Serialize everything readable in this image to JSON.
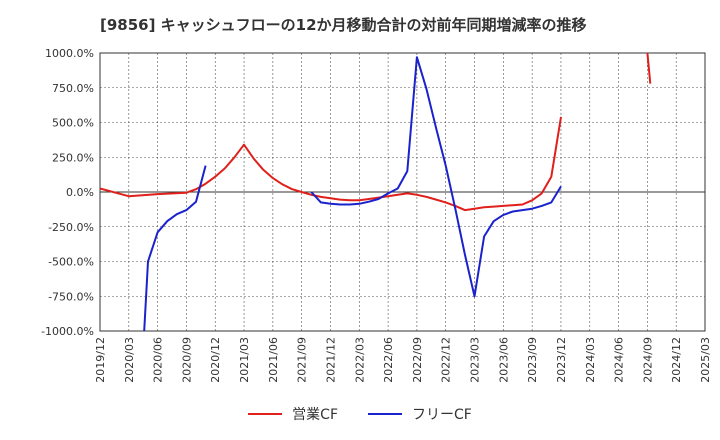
{
  "chart_data": {
    "type": "line",
    "title": "[9856]  キャッシュフローの12か月移動合計の対前年同期増減率の推移",
    "ylim": [
      -1000,
      1000
    ],
    "yticks": [
      1000,
      750,
      500,
      250,
      0,
      -250,
      -500,
      -750,
      -1000
    ],
    "ytick_labels": [
      "1000.0%",
      "750.0%",
      "500.0%",
      "250.0%",
      "0.0%",
      "-250.0%",
      "-500.0%",
      "-750.0%",
      "-1000.0%"
    ],
    "xticks": [
      "2019/12",
      "2020/03",
      "2020/06",
      "2020/09",
      "2020/12",
      "2021/03",
      "2021/06",
      "2021/09",
      "2021/12",
      "2022/03",
      "2022/06",
      "2022/09",
      "2022/12",
      "2023/03",
      "2023/06",
      "2023/09",
      "2023/12",
      "2024/03",
      "2024/06",
      "2024/09",
      "2024/12",
      "2025/03"
    ],
    "grid": true,
    "legend_position": "bottom-center",
    "series": [
      {
        "name": "営業CF",
        "color": "#e0201b",
        "segments": [
          [
            [
              0,
              25
            ],
            [
              3,
              -30
            ],
            [
              6,
              -15
            ],
            [
              9,
              -5
            ],
            [
              10,
              20
            ],
            [
              11,
              60
            ],
            [
              12,
              110
            ],
            [
              13,
              170
            ],
            [
              14,
              250
            ],
            [
              15,
              340
            ],
            [
              16,
              240
            ],
            [
              17,
              160
            ],
            [
              18,
              100
            ],
            [
              19,
              55
            ],
            [
              20,
              20
            ],
            [
              21,
              0
            ],
            [
              22,
              -20
            ],
            [
              23,
              -35
            ],
            [
              24,
              -45
            ],
            [
              25,
              -55
            ],
            [
              26,
              -60
            ],
            [
              27,
              -60
            ],
            [
              28,
              -50
            ],
            [
              29,
              -40
            ],
            [
              30,
              -30
            ],
            [
              31,
              -20
            ],
            [
              32,
              -10
            ],
            [
              33,
              -20
            ],
            [
              34,
              -35
            ],
            [
              35,
              -55
            ],
            [
              36,
              -75
            ],
            [
              37,
              -100
            ],
            [
              38,
              -130
            ],
            [
              39,
              -120
            ],
            [
              40,
              -110
            ],
            [
              41,
              -105
            ],
            [
              42,
              -100
            ],
            [
              43,
              -95
            ],
            [
              44,
              -90
            ],
            [
              45,
              -60
            ],
            [
              46,
              -10
            ],
            [
              47,
              110
            ],
            [
              48,
              540
            ]
          ],
          [
            [
              57,
              1000
            ],
            [
              57.3,
              780
            ]
          ]
        ]
      },
      {
        "name": "フリーCF",
        "color": "#1a22cc",
        "segments": [
          [
            [
              4.6,
              -1000
            ],
            [
              5,
              -500
            ],
            [
              6,
              -290
            ],
            [
              7,
              -210
            ],
            [
              8,
              -160
            ],
            [
              9,
              -130
            ],
            [
              10,
              -70
            ],
            [
              11,
              190
            ]
          ],
          [
            [
              22,
              0
            ],
            [
              23,
              -75
            ],
            [
              24,
              -85
            ],
            [
              25,
              -90
            ],
            [
              26,
              -90
            ],
            [
              27,
              -85
            ],
            [
              28,
              -70
            ],
            [
              29,
              -50
            ],
            [
              30,
              -10
            ],
            [
              31,
              25
            ],
            [
              32,
              150
            ],
            [
              33,
              970
            ],
            [
              34,
              740
            ],
            [
              35,
              460
            ],
            [
              36,
              190
            ],
            [
              37,
              -120
            ],
            [
              38,
              -450
            ],
            [
              39,
              -750
            ],
            [
              40,
              -320
            ],
            [
              41,
              -210
            ],
            [
              42,
              -165
            ],
            [
              43,
              -140
            ],
            [
              44,
              -130
            ],
            [
              45,
              -120
            ],
            [
              46,
              -100
            ],
            [
              47,
              -75
            ],
            [
              48,
              40
            ]
          ]
        ]
      }
    ]
  }
}
